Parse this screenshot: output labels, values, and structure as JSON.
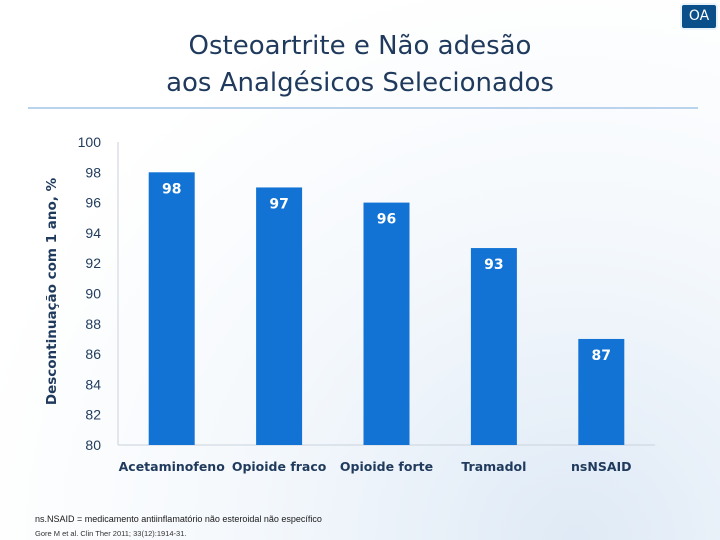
{
  "badge": "OA",
  "title_lines": [
    "Osteoartrite e Não adesão",
    "aos Analgésicos Selecionados"
  ],
  "footnote": "ns.NSAID = medicamento antiinflamatório não esteroidal não específico",
  "citation": "Gore M et al. Clin Ther 2011; 33(12):1914-31.",
  "colors": {
    "bar": "#1273d4",
    "title": "#1f3a5c",
    "axis_text": "#1f3a5c"
  },
  "chart_data": {
    "type": "bar",
    "title": "",
    "xlabel": "",
    "ylabel": "Descontinuação com 1 ano, %",
    "categories": [
      "Acetaminofeno",
      "Opioide fraco",
      "Opioide forte",
      "Tramadol",
      "nsNSAID"
    ],
    "values": [
      98,
      97,
      96,
      93,
      87
    ],
    "data_labels": [
      "98",
      "97",
      "96",
      "93",
      "87"
    ],
    "ylim": [
      80,
      100
    ],
    "yticks": [
      "80",
      "82",
      "84",
      "86",
      "88",
      "90",
      "92",
      "94",
      "96",
      "98",
      "100"
    ],
    "grid": false
  }
}
